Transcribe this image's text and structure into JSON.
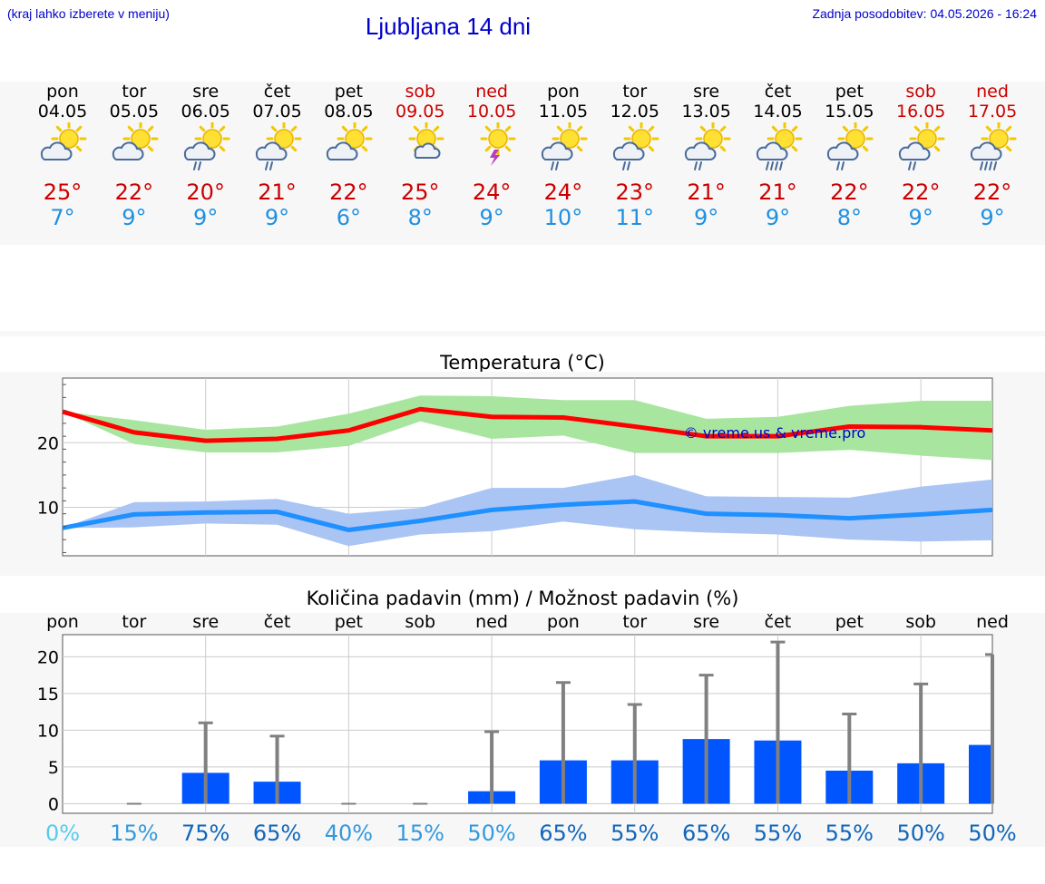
{
  "header": {
    "hint": "(kraj lahko izberete v meniju)",
    "title": "Ljubljana 14 dni",
    "updated": "Zadnja posodobitev: 04.05.2026 - 16:24"
  },
  "days": [
    {
      "name": "pon",
      "date": "04.05",
      "weekend": false,
      "icon": "partly-cloudy-sun-icon",
      "rain": 0,
      "tmax": "25°",
      "tmin": "7°"
    },
    {
      "name": "tor",
      "date": "05.05",
      "weekend": false,
      "icon": "partly-cloudy-sun-icon",
      "rain": 0,
      "tmax": "22°",
      "tmin": "9°"
    },
    {
      "name": "sre",
      "date": "06.05",
      "weekend": false,
      "icon": "sun-cloud-rain-icon",
      "rain": 1,
      "tmax": "20°",
      "tmin": "9°"
    },
    {
      "name": "čet",
      "date": "07.05",
      "weekend": false,
      "icon": "sun-cloud-rain-icon",
      "rain": 1,
      "tmax": "21°",
      "tmin": "9°"
    },
    {
      "name": "pet",
      "date": "08.05",
      "weekend": false,
      "icon": "partly-cloudy-sun-icon",
      "rain": 0,
      "tmax": "22°",
      "tmin": "6°"
    },
    {
      "name": "sob",
      "date": "09.05",
      "weekend": true,
      "icon": "sun-small-cloud-icon",
      "rain": 0,
      "tmax": "25°",
      "tmin": "8°"
    },
    {
      "name": "ned",
      "date": "10.05",
      "weekend": true,
      "icon": "sun-thunder-icon",
      "rain": 0,
      "tmax": "24°",
      "tmin": "9°"
    },
    {
      "name": "pon",
      "date": "11.05",
      "weekend": false,
      "icon": "sun-cloud-rain-icon",
      "rain": 1,
      "tmax": "24°",
      "tmin": "10°"
    },
    {
      "name": "tor",
      "date": "12.05",
      "weekend": false,
      "icon": "sun-cloud-rain-icon",
      "rain": 1,
      "tmax": "23°",
      "tmin": "11°"
    },
    {
      "name": "sre",
      "date": "13.05",
      "weekend": false,
      "icon": "sun-cloud-rain-icon",
      "rain": 1,
      "tmax": "21°",
      "tmin": "9°"
    },
    {
      "name": "čet",
      "date": "14.05",
      "weekend": false,
      "icon": "sun-cloud-heavy-rain-icon",
      "rain": 2,
      "tmax": "21°",
      "tmin": "9°"
    },
    {
      "name": "pet",
      "date": "15.05",
      "weekend": false,
      "icon": "sun-cloud-rain-icon",
      "rain": 1,
      "tmax": "22°",
      "tmin": "8°"
    },
    {
      "name": "sob",
      "date": "16.05",
      "weekend": true,
      "icon": "sun-cloud-rain-icon",
      "rain": 1,
      "tmax": "22°",
      "tmin": "9°"
    },
    {
      "name": "ned",
      "date": "17.05",
      "weekend": true,
      "icon": "sun-cloud-heavy-rain-icon",
      "rain": 2,
      "tmax": "22°",
      "tmin": "9°"
    }
  ],
  "colors": {
    "max_line": "#ff0000",
    "max_band": "#a8e6a0",
    "min_line": "#1e90ff",
    "min_band": "#aac4f4",
    "precip_bar": "#0055ff",
    "error_bar": "#808080",
    "pct_colors": [
      "#55ccee",
      "#3399dd",
      "#1166bb",
      "#1166bb",
      "#3399dd",
      "#3399dd",
      "#3399dd",
      "#1166bb",
      "#1166bb",
      "#1166bb",
      "#1166bb",
      "#1166bb",
      "#1166bb",
      "#1166bb"
    ]
  },
  "chart_data": [
    {
      "type": "line",
      "title": "Temperatura (°C)",
      "watermark": "© vreme.us & vreme.pro",
      "ylim": [
        2.5,
        30
      ],
      "yticks": [
        10,
        20
      ],
      "grid": true,
      "series": [
        {
          "values": [
            24.8,
            21.6,
            20.3,
            20.6,
            21.9,
            25.2,
            24.0,
            23.9,
            22.5,
            21.0,
            21.0,
            22.5,
            22.4,
            21.9
          ],
          "band_low": [
            24.8,
            19.8,
            18.5,
            18.5,
            19.5,
            23.3,
            20.6,
            21.1,
            18.4,
            18.4,
            18.4,
            18.9,
            18.0,
            17.3
          ],
          "band_high": [
            24.8,
            23.5,
            22.0,
            22.5,
            24.5,
            27.3,
            27.2,
            26.6,
            26.6,
            23.7,
            24.0,
            25.7,
            26.5,
            26.5
          ]
        },
        {
          "values": [
            6.8,
            8.9,
            9.2,
            9.3,
            6.5,
            7.9,
            9.6,
            10.4,
            10.9,
            9.0,
            8.8,
            8.3,
            8.9,
            9.6
          ],
          "band_low": [
            6.8,
            6.9,
            7.5,
            7.3,
            4.0,
            5.8,
            6.3,
            7.8,
            6.6,
            6.1,
            5.8,
            5.0,
            4.7,
            4.9
          ],
          "band_high": [
            6.8,
            10.8,
            10.9,
            11.3,
            9.0,
            9.9,
            13.0,
            13.0,
            15.0,
            11.7,
            11.6,
            11.5,
            13.2,
            14.3
          ]
        }
      ]
    },
    {
      "type": "bar",
      "title": "Količina padavin (mm) / Možnost padavin (%)",
      "categories": [
        "pon",
        "tor",
        "sre",
        "čet",
        "pet",
        "sob",
        "ned",
        "pon",
        "tor",
        "sre",
        "čet",
        "pet",
        "sob",
        "ned"
      ],
      "ylim": [
        -1.3,
        23
      ],
      "yticks": [
        0,
        5,
        10,
        15,
        20
      ],
      "values": [
        0,
        0,
        4.2,
        3.0,
        0,
        0,
        1.7,
        5.9,
        5.9,
        8.8,
        8.6,
        4.5,
        5.5,
        8.0
      ],
      "error_high": [
        0,
        0,
        11.0,
        9.2,
        0,
        0,
        9.8,
        16.5,
        13.5,
        17.5,
        22.0,
        12.2,
        16.3,
        20.3
      ],
      "probability": [
        "0%",
        "15%",
        "75%",
        "65%",
        "40%",
        "15%",
        "50%",
        "65%",
        "55%",
        "65%",
        "55%",
        "55%",
        "50%",
        "50%"
      ]
    }
  ]
}
